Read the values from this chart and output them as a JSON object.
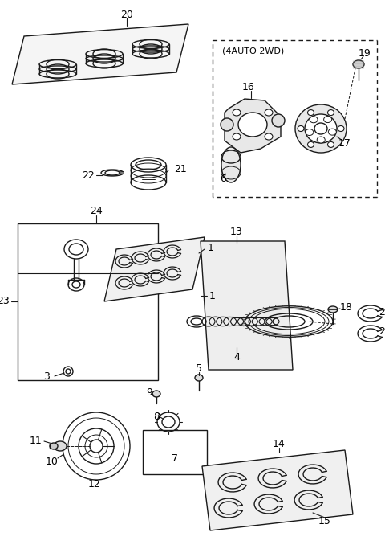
{
  "bg_color": "#ffffff",
  "line_color": "#1a1a1a",
  "fig_w": 4.8,
  "fig_h": 6.88,
  "dpi": 100
}
